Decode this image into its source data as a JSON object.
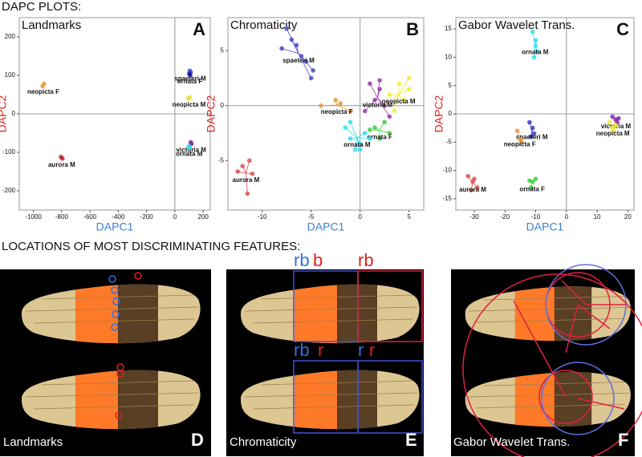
{
  "header": {
    "title": "DAPC PLOTS:"
  },
  "chart_data": [
    {
      "type": "scatter",
      "title": "Landmarks",
      "letter": "A",
      "x_label": "DAPC1",
      "y_label": "DAPC2",
      "xlim": [
        -1100,
        250
      ],
      "xticks": [
        -1000,
        -800,
        -600,
        -400,
        -200,
        0,
        200
      ],
      "ylim": [
        -250,
        250
      ],
      "yticks": [
        -200,
        -100,
        0,
        100,
        200
      ],
      "zero_lines": true,
      "series": [
        {
          "name": "neopicta F",
          "color": "#e8963a",
          "x": [
            -935,
            -925
          ],
          "values": [
            72,
            78
          ]
        },
        {
          "name": "spaeteri M",
          "color": "#3a4fd8",
          "x": [
            105,
            112
          ],
          "values": [
            112,
            108
          ]
        },
        {
          "name": "ornata F",
          "color": "#14148a",
          "x": [
            102,
            108
          ],
          "values": [
            104,
            100
          ]
        },
        {
          "name": "neopicta M",
          "color": "#e8e030",
          "x": [
            95,
            104
          ],
          "values": [
            40,
            43
          ]
        },
        {
          "name": "victoria M",
          "color": "#8a2aa0",
          "x": [
            112,
            118
          ],
          "values": [
            -74,
            -78
          ]
        },
        {
          "name": "ornata M",
          "color": "#30d8e8",
          "x": [
            98,
            104
          ],
          "values": [
            -84,
            -88
          ]
        },
        {
          "name": "aurora M",
          "color": "#c02828",
          "x": [
            -805,
            -795
          ],
          "values": [
            -112,
            -116
          ]
        }
      ]
    },
    {
      "type": "scatter",
      "title": "Chromaticity",
      "letter": "B",
      "x_label": "DAPC1",
      "y_label": "DAPC2",
      "xlim": [
        -13.5,
        6.5
      ],
      "xticks": [
        -10,
        -5,
        0,
        5
      ],
      "ylim": [
        -9.5,
        8
      ],
      "yticks": [
        -5,
        0,
        5
      ],
      "zero_lines": true,
      "series": [
        {
          "name": "spaeteri M",
          "color": "#4a4ad0",
          "x": [
            -7.5,
            -7,
            -6.5,
            -6,
            -5.5,
            -5,
            -4.8,
            -8
          ],
          "values": [
            7,
            6,
            5.5,
            4.5,
            4,
            2.5,
            3.2,
            5.2
          ]
        },
        {
          "name": "aurora M",
          "color": "#e05050",
          "x": [
            -12.5,
            -12,
            -11.5,
            -11,
            -11.3
          ],
          "values": [
            -6,
            -5.5,
            -8,
            -6.2,
            -5
          ]
        },
        {
          "name": "neopicta F",
          "color": "#e8963a",
          "x": [
            -4,
            -2.5,
            -1,
            -2
          ],
          "values": [
            0,
            0.5,
            -0.5,
            0.2
          ]
        },
        {
          "name": "neopicta M",
          "color": "#f0f030",
          "x": [
            3,
            4,
            5,
            4.5,
            3.5,
            5,
            2.5
          ],
          "values": [
            1,
            2,
            1.5,
            0.5,
            -0.5,
            2.5,
            0
          ]
        },
        {
          "name": "victoria M",
          "color": "#9a3aa8",
          "x": [
            1,
            2,
            2.5,
            3,
            1.5,
            0.5,
            2
          ],
          "values": [
            2,
            1.5,
            0,
            -1,
            0.5,
            -0.5,
            2.3
          ]
        },
        {
          "name": "ornata F",
          "color": "#40d040",
          "x": [
            1.5,
            2.5,
            3,
            2,
            1
          ],
          "values": [
            -2,
            -1.5,
            -2.5,
            -3,
            -2.2
          ]
        },
        {
          "name": "ornata M",
          "color": "#30e0f0",
          "x": [
            -1.5,
            -1,
            -0.5,
            0,
            0.5,
            -1,
            0,
            1
          ],
          "values": [
            -2,
            -3,
            -4,
            -3.5,
            -2.5,
            -1.5,
            -4,
            -3
          ]
        }
      ]
    },
    {
      "type": "scatter",
      "title": "Gabor Wavelet Trans.",
      "letter": "C",
      "x_label": "DAPC1",
      "y_label": "DAPC2",
      "xlim": [
        -36,
        22
      ],
      "xticks": [
        -30,
        -20,
        -10,
        0,
        10,
        20
      ],
      "ylim": [
        -17,
        17
      ],
      "yticks": [
        -15,
        -10,
        -5,
        0,
        5,
        10,
        15
      ],
      "zero_lines": true,
      "series": [
        {
          "name": "ornata M",
          "color": "#30e0f0",
          "x": [
            -11,
            -10,
            -9.5,
            -10.5,
            -10
          ],
          "values": [
            14.5,
            13,
            11,
            10,
            12
          ]
        },
        {
          "name": "victoria M",
          "color": "#8a2aa0",
          "x": [
            15,
            16,
            17,
            16.5
          ],
          "values": [
            -0.5,
            -1,
            -0.8,
            -1.5
          ]
        },
        {
          "name": "neopicta M",
          "color": "#f0f030",
          "x": [
            14,
            15,
            16,
            15.5
          ],
          "values": [
            -1.5,
            -2.5,
            -2,
            -3
          ]
        },
        {
          "name": "spaeteri M",
          "color": "#3a3ac8",
          "x": [
            -12,
            -11,
            -10.5,
            -11.5
          ],
          "values": [
            -1.5,
            -2.5,
            -3.5,
            -4
          ]
        },
        {
          "name": "neopicta F",
          "color": "#e8963a",
          "x": [
            -16,
            -15,
            -14.5
          ],
          "values": [
            -3,
            -4.5,
            -5
          ]
        },
        {
          "name": "aurora M",
          "color": "#e05050",
          "x": [
            -32,
            -30,
            -29,
            -31,
            -30.5
          ],
          "values": [
            -11,
            -11.5,
            -13,
            -13.5,
            -12
          ]
        },
        {
          "name": "ornata F",
          "color": "#40d040",
          "x": [
            -12,
            -11,
            -10,
            -11.5
          ],
          "values": [
            -11.8,
            -12,
            -11.5,
            -13
          ]
        }
      ]
    }
  ],
  "features": {
    "title": "LOCATIONS OF MOST DISCRIMINATING FEATURES:",
    "panels": [
      {
        "label": "Landmarks",
        "letter": "D"
      },
      {
        "label": "Chromaticity",
        "letter": "E",
        "marks": [
          [
            "rb",
            "b"
          ],
          [
            "rb"
          ],
          [
            "rb",
            "r"
          ],
          [
            "r",
            "r"
          ]
        ]
      },
      {
        "label": "Gabor Wavelet Trans.",
        "letter": "F"
      }
    ]
  }
}
